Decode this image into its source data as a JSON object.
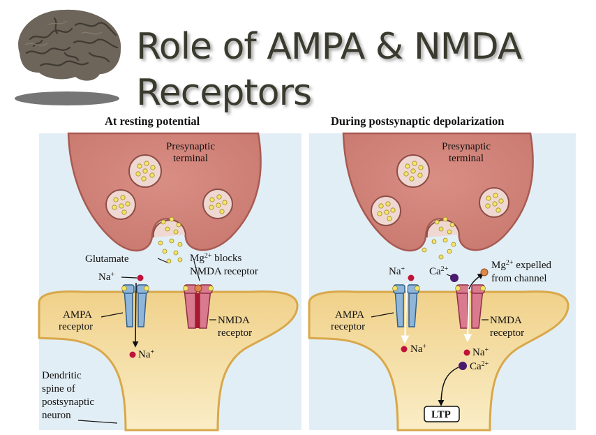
{
  "title": {
    "line1": "Role of AMPA & NMDA",
    "line2": "Receptors"
  },
  "brain_icon": "brain-image",
  "left_panel": {
    "heading": "At resting potential",
    "presynaptic_line1": "Presynaptic",
    "presynaptic_line2": "terminal",
    "glutamate": "Glutamate",
    "na_top": "Na",
    "na_bottom": "Na",
    "mg_line1a": "Mg",
    "mg_line1b": " blocks",
    "mg_line2": "NMDA receptor",
    "ampa_line1": "AMPA",
    "ampa_line2": "receptor",
    "nmda_line1": "NMDA",
    "nmda_line2": "receptor",
    "dendrite_line1": "Dendritic",
    "dendrite_line2": "spine of",
    "dendrite_line3": "postsynaptic",
    "dendrite_line4": "neuron"
  },
  "right_panel": {
    "heading": "During postsynaptic depolarization",
    "presynaptic_line1": "Presynaptic",
    "presynaptic_line2": "terminal",
    "na_top": "Na",
    "ca_top": "Ca",
    "mg_line1a": "Mg",
    "mg_line1b": " expelled",
    "mg_line2": "from channel",
    "ampa_line1": "AMPA",
    "ampa_line2": "receptor",
    "nmda_line1": "NMDA",
    "nmda_line2": "receptor",
    "na_bottom_left": "Na",
    "na_bottom_right": "Na",
    "ca_bottom": "Ca",
    "ltp": "LTP"
  },
  "superscripts": {
    "plus": "+",
    "two_plus": "2+"
  },
  "colors": {
    "background_panel": "#e2eef5",
    "presynaptic_fill": "#d4837a",
    "postsynaptic_fill": "#f4e0a8",
    "ampa_color": "#8fb6d9",
    "nmda_color": "#d97a8e",
    "glutamate_color": "#f3e46a",
    "sodium_color": "#c0123a",
    "calcium_color": "#4a1a6e",
    "magnesium_color": "#e0884a"
  }
}
